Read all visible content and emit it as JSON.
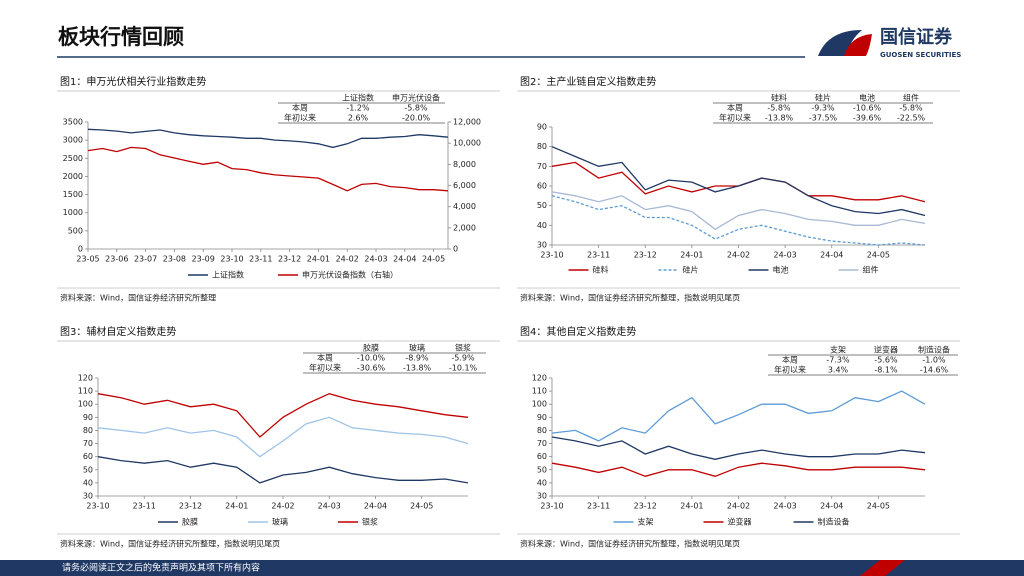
{
  "header": {
    "title": "板块行情回顾",
    "logo_name": "国信证券",
    "logo_sub": "GUOSEN SECURITIES"
  },
  "footer": "请务必阅读正文之后的免责声明及其项下所有内容",
  "chart_data": [
    {
      "type": "line",
      "title": "图1：申万光伏相关行业指数走势",
      "source": "资料来源：Wind，国信证券经济研究所整理",
      "table": {
        "columns": [
          "上证指数",
          "申万光伏设备"
        ],
        "rows": [
          {
            "label": "本周",
            "values": [
              "-1.2%",
              "-5.8%"
            ]
          },
          {
            "label": "年初以来",
            "values": [
              "2.6%",
              "-20.0%"
            ]
          }
        ]
      },
      "categories": [
        "23-05",
        null,
        "23-06",
        null,
        "23-07",
        null,
        "23-08",
        null,
        "23-09",
        null,
        "23-10",
        null,
        "23-11",
        null,
        "23-12",
        null,
        "24-01",
        null,
        "24-02",
        null,
        "24-03",
        null,
        "24-04",
        null,
        "24-05",
        null
      ],
      "ylim": [
        0,
        3500
      ],
      "yticks": [
        0,
        500,
        1000,
        1500,
        2000,
        2500,
        3000,
        3500
      ],
      "y2lim": [
        0,
        12000
      ],
      "y2ticks": [
        0,
        {
          "value": 2000,
          "label": "2,000"
        },
        {
          "value": 4000,
          "label": "4,000"
        },
        {
          "value": 6000,
          "label": "6,000"
        },
        {
          "value": 8000,
          "label": "8,000"
        },
        {
          "value": 10000,
          "label": "10,000"
        },
        {
          "value": 12000,
          "label": "12,000"
        }
      ],
      "series": [
        {
          "name": "上证指数",
          "color": "#1f3864",
          "values": [
            3300,
            3280,
            3250,
            3200,
            3240,
            3280,
            3200,
            3150,
            3120,
            3100,
            3080,
            3050,
            3050,
            3000,
            2980,
            2950,
            2900,
            2800,
            2900,
            3050,
            3050,
            3080,
            3100,
            3150,
            3120,
            3080
          ]
        },
        {
          "name": "申万光伏设备指数（右轴）",
          "color": "#c00000",
          "axis": "y2",
          "values": [
            9300,
            9500,
            9200,
            9600,
            9500,
            8900,
            8600,
            8300,
            8000,
            8200,
            7600,
            7500,
            7200,
            7000,
            6900,
            6800,
            6700,
            6100,
            5500,
            6100,
            6200,
            5900,
            5800,
            5600,
            5600,
            5500
          ]
        }
      ]
    },
    {
      "type": "line",
      "title": "图2：主产业链自定义指数走势",
      "source": "资料来源：Wind，国信证券经济研究所整理，指数说明见尾页",
      "table": {
        "columns": [
          "硅料",
          "硅片",
          "电池",
          "组件"
        ],
        "rows": [
          {
            "label": "本周",
            "values": [
              "-5.8%",
              "-9.3%",
              "-10.6%",
              "-5.8%"
            ]
          },
          {
            "label": "年初以来",
            "values": [
              "-13.8%",
              "-37.5%",
              "-39.6%",
              "-22.5%"
            ]
          }
        ]
      },
      "categories": [
        "23-10",
        null,
        "23-11",
        null,
        "23-12",
        null,
        "24-01",
        null,
        "24-02",
        null,
        "24-03",
        null,
        "24-04",
        null,
        "24-05",
        null,
        null
      ],
      "ylim": [
        30,
        90
      ],
      "yticks": [
        30,
        40,
        50,
        60,
        70,
        80,
        90
      ],
      "series": [
        {
          "name": "硅料",
          "color": "#c00000",
          "values": [
            70,
            72,
            64,
            67,
            56,
            60,
            57,
            60,
            60,
            64,
            62,
            55,
            55,
            53,
            53,
            55,
            52
          ]
        },
        {
          "name": "硅片",
          "color": "#5b9bd5",
          "dashed": true,
          "values": [
            55,
            52,
            48,
            50,
            44,
            44,
            40,
            33,
            38,
            40,
            37,
            34,
            32,
            31,
            30,
            31,
            30
          ]
        },
        {
          "name": "电池",
          "color": "#1f3864",
          "values": [
            80,
            75,
            70,
            72,
            58,
            63,
            62,
            57,
            60,
            64,
            62,
            55,
            50,
            47,
            46,
            48,
            45
          ]
        },
        {
          "name": "组件",
          "color": "#a9b8d4",
          "values": [
            57,
            55,
            52,
            55,
            48,
            50,
            47,
            38,
            45,
            48,
            46,
            43,
            42,
            40,
            40,
            43,
            41
          ]
        }
      ]
    },
    {
      "type": "line",
      "title": "图3：辅材自定义指数走势",
      "source": "资料来源：Wind，国信证券经济研究所整理，指数说明见尾页",
      "table": {
        "columns": [
          "胶膜",
          "玻璃",
          "银浆"
        ],
        "rows": [
          {
            "label": "本周",
            "values": [
              "-10.0%",
              "-8.9%",
              "-5.9%"
            ]
          },
          {
            "label": "年初以来",
            "values": [
              "-30.6%",
              "-13.8%",
              "-10.1%"
            ]
          }
        ]
      },
      "categories": [
        "23-10",
        null,
        "23-11",
        null,
        "23-12",
        null,
        "24-01",
        null,
        "24-02",
        null,
        "24-03",
        null,
        "24-04",
        null,
        "24-05",
        null,
        null
      ],
      "ylim": [
        30,
        120
      ],
      "yticks": [
        30,
        40,
        50,
        60,
        70,
        80,
        90,
        100,
        110,
        120
      ],
      "series": [
        {
          "name": "胶膜",
          "color": "#1f3864",
          "values": [
            60,
            57,
            55,
            57,
            52,
            55,
            52,
            40,
            46,
            48,
            52,
            47,
            44,
            42,
            42,
            43,
            40
          ]
        },
        {
          "name": "玻璃",
          "color": "#9dc3e6",
          "values": [
            82,
            80,
            78,
            82,
            78,
            80,
            75,
            60,
            72,
            85,
            90,
            82,
            80,
            78,
            77,
            75,
            70
          ]
        },
        {
          "name": "银浆",
          "color": "#c00000",
          "values": [
            108,
            105,
            100,
            103,
            98,
            100,
            95,
            75,
            90,
            100,
            108,
            103,
            100,
            98,
            95,
            92,
            90
          ]
        }
      ]
    },
    {
      "type": "line",
      "title": "图4：其他自定义指数走势",
      "source": "资料来源：Wind，国信证券经济研究所整理，指数说明见尾页",
      "table": {
        "columns": [
          "支架",
          "逆变器",
          "制造设备"
        ],
        "rows": [
          {
            "label": "本周",
            "values": [
              "-7.3%",
              "-5.6%",
              "-1.0%"
            ]
          },
          {
            "label": "年初以来",
            "values": [
              "3.4%",
              "-8.1%",
              "-14.6%"
            ]
          }
        ]
      },
      "categories": [
        "23-10",
        null,
        "23-11",
        null,
        "23-12",
        null,
        "24-01",
        null,
        "24-02",
        null,
        "24-03",
        null,
        "24-04",
        null,
        "24-05",
        null,
        null
      ],
      "ylim": [
        30,
        120
      ],
      "yticks": [
        30,
        40,
        50,
        60,
        70,
        80,
        90,
        100,
        110,
        120
      ],
      "series": [
        {
          "name": "支架",
          "color": "#5b9bd5",
          "values": [
            78,
            80,
            72,
            82,
            78,
            95,
            105,
            85,
            92,
            100,
            100,
            93,
            95,
            105,
            102,
            110,
            100
          ]
        },
        {
          "name": "逆变器",
          "color": "#c00000",
          "values": [
            55,
            52,
            48,
            52,
            45,
            50,
            50,
            45,
            52,
            55,
            53,
            50,
            50,
            52,
            52,
            52,
            50
          ]
        },
        {
          "name": "制造设备",
          "color": "#1f3864",
          "values": [
            75,
            72,
            68,
            72,
            62,
            68,
            62,
            58,
            62,
            65,
            62,
            60,
            60,
            62,
            62,
            65,
            63
          ]
        }
      ]
    }
  ]
}
